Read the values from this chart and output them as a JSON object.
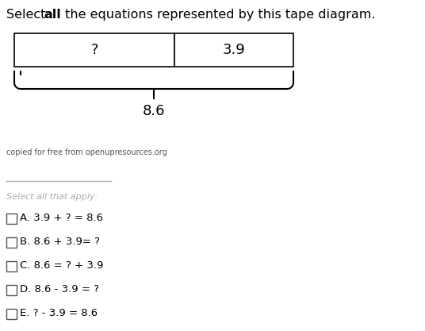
{
  "title_fontsize": 11.5,
  "tape_left_label": "?",
  "tape_right_label": "3.9",
  "brace_label": "8.6",
  "attribution": "copied for free from openupresources.org",
  "divider_label": "Select all that apply:",
  "options": [
    {
      "letter": "A",
      "text": "3.9 + ? = 8.6"
    },
    {
      "letter": "B",
      "text": "8.6 + 3.9= ?"
    },
    {
      "letter": "C",
      "text": "8.6 = ? + 3.9"
    },
    {
      "letter": "D",
      "text": "8.6 - 3.9 = ?"
    },
    {
      "letter": "E",
      "text": "? - 3.9 = 8.6"
    }
  ],
  "bg_color": "#ffffff"
}
